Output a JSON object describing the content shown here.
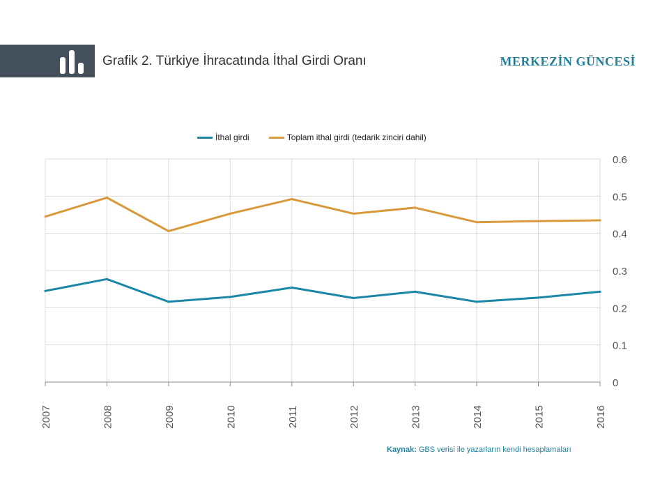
{
  "header": {
    "title_prefix": "Grafik 2.",
    "title_text": "Türkiye İhracatında İthal Girdi Oranı",
    "brand": "MERKEZİN GÜNCESİ"
  },
  "source": {
    "label": "Kaynak:",
    "text": "GBS verisi ile yazarların kendi hesaplamaları"
  },
  "colors": {
    "header_band": "#44505c",
    "accent": "#1f7f9a",
    "series_ithal": "#1a87a6",
    "series_toplam": "#d8993a",
    "grid": "#d9d9d9"
  },
  "icons": [
    "bar-chart-icon"
  ],
  "chart_data": {
    "type": "line",
    "x": [
      "2007",
      "2008",
      "2009",
      "2010",
      "2011",
      "2012",
      "2013",
      "2014",
      "2015",
      "2016"
    ],
    "series": [
      {
        "name": "İthal girdi",
        "values": [
          0.245,
          0.277,
          0.216,
          0.229,
          0.254,
          0.226,
          0.243,
          0.216,
          0.227,
          0.243
        ]
      },
      {
        "name": "Toplam ithal girdi (tedarik zinciri dahil)",
        "values": [
          0.445,
          0.496,
          0.406,
          0.453,
          0.492,
          0.453,
          0.469,
          0.43,
          0.433,
          0.435
        ]
      }
    ],
    "y_ticks": [
      "0",
      "0.1",
      "0.2",
      "0.3",
      "0.4",
      "0.5",
      "0.6"
    ],
    "ylim": [
      0,
      0.6
    ],
    "grid": true,
    "legend_position": "top",
    "y_axis_side": "right"
  }
}
